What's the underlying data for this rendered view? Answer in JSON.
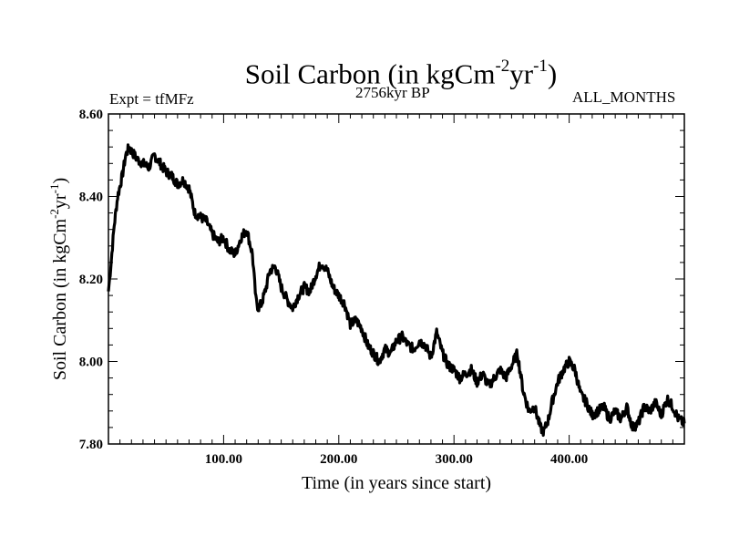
{
  "chart_data": {
    "type": "line",
    "title": {
      "main": "Soil Carbon (in kgCm",
      "exp1": "-2",
      "mid": "yr",
      "exp2": "-1",
      "end": ")"
    },
    "expt_label": "Expt = tfMFz",
    "subtitle": "2756kyr BP",
    "months_label": "ALL_MONTHS",
    "xlabel": "Time (in years since start)",
    "ylabel": {
      "main": "Soil Carbon (in kgCm",
      "exp1": "-2",
      "mid": "yr",
      "exp2": "-1",
      "end": ")"
    },
    "xlim": [
      0,
      500
    ],
    "ylim": [
      7.8,
      8.6
    ],
    "x_ticks": [
      100,
      200,
      300,
      400
    ],
    "x_tick_labels": [
      "100.00",
      "200.00",
      "300.00",
      "400.00"
    ],
    "y_ticks": [
      7.8,
      8.0,
      8.2,
      8.4,
      8.6
    ],
    "y_tick_labels": [
      "7.80",
      "8.00",
      "8.20",
      "8.40",
      "8.60"
    ],
    "series": [
      {
        "name": "Soil Carbon",
        "color": "#000000",
        "x": [
          0,
          2,
          5,
          8,
          12,
          15,
          18,
          20,
          25,
          30,
          35,
          40,
          45,
          50,
          55,
          60,
          65,
          70,
          75,
          80,
          85,
          90,
          95,
          100,
          105,
          110,
          115,
          120,
          125,
          128,
          130,
          133,
          137,
          140,
          145,
          150,
          155,
          160,
          165,
          170,
          175,
          180,
          185,
          190,
          195,
          200,
          205,
          210,
          215,
          220,
          225,
          230,
          235,
          240,
          245,
          250,
          255,
          260,
          265,
          270,
          275,
          280,
          285,
          290,
          295,
          300,
          305,
          310,
          315,
          320,
          325,
          330,
          335,
          340,
          345,
          350,
          355,
          360,
          365,
          370,
          375,
          378,
          382,
          385,
          390,
          395,
          400,
          405,
          410,
          415,
          420,
          425,
          430,
          435,
          440,
          445,
          450,
          455,
          460,
          465,
          470,
          475,
          480,
          485,
          490,
          495,
          500
        ],
        "values": [
          8.17,
          8.23,
          8.33,
          8.4,
          8.45,
          8.5,
          8.52,
          8.51,
          8.49,
          8.48,
          8.47,
          8.5,
          8.48,
          8.46,
          8.45,
          8.43,
          8.44,
          8.42,
          8.36,
          8.35,
          8.34,
          8.31,
          8.29,
          8.3,
          8.27,
          8.26,
          8.3,
          8.32,
          8.26,
          8.15,
          8.13,
          8.14,
          8.18,
          8.22,
          8.23,
          8.18,
          8.15,
          8.13,
          8.16,
          8.18,
          8.17,
          8.21,
          8.24,
          8.22,
          8.18,
          8.16,
          8.14,
          8.09,
          8.1,
          8.08,
          8.04,
          8.02,
          8.0,
          8.03,
          8.02,
          8.05,
          8.06,
          8.04,
          8.03,
          8.05,
          8.04,
          8.01,
          8.07,
          8.02,
          7.99,
          7.98,
          7.96,
          7.97,
          7.98,
          7.95,
          7.97,
          7.94,
          7.96,
          7.98,
          7.96,
          7.99,
          8.02,
          7.93,
          7.88,
          7.89,
          7.84,
          7.83,
          7.86,
          7.9,
          7.95,
          7.98,
          8.0,
          7.98,
          7.92,
          7.9,
          7.87,
          7.88,
          7.89,
          7.86,
          7.88,
          7.86,
          7.89,
          7.84,
          7.85,
          7.89,
          7.88,
          7.9,
          7.87,
          7.91,
          7.89,
          7.86,
          7.85
        ]
      }
    ]
  }
}
